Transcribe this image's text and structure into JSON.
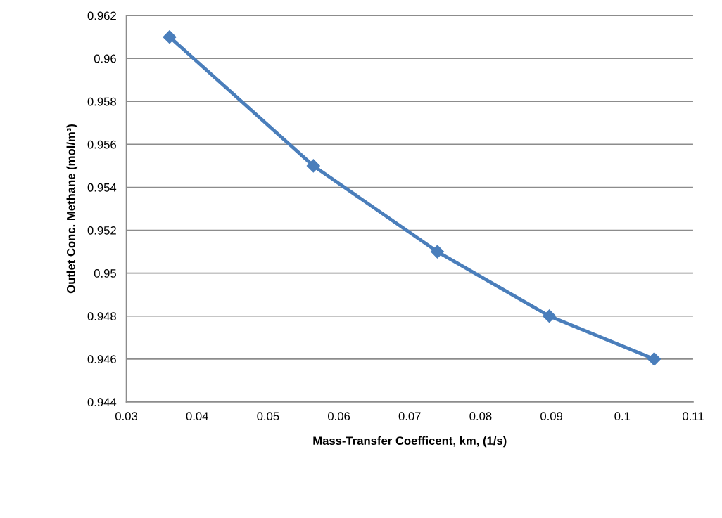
{
  "chart_data": {
    "type": "line",
    "xlabel": "Mass-Transfer Coefficent, km, (1/s)",
    "ylabel": "Outlet Conc. Methane (mol/m³)",
    "x": [
      0.0361,
      0.0564,
      0.0739,
      0.0897,
      0.1045
    ],
    "series": [
      {
        "color": "#4a7ebb",
        "values": [
          0.961,
          0.955,
          0.951,
          0.948,
          0.946
        ]
      }
    ],
    "xlim": [
      0.03,
      0.11
    ],
    "xticks": [
      0.03,
      0.04,
      0.05,
      0.06,
      0.07,
      0.08,
      0.09,
      0.1,
      0.11
    ],
    "ylim": [
      0.944,
      0.962
    ],
    "yticks": [
      0.944,
      0.946,
      0.948,
      0.95,
      0.952,
      0.954,
      0.956,
      0.958,
      0.96,
      0.962
    ],
    "grid": "y",
    "marker": "diamond",
    "line_style": "solid"
  }
}
